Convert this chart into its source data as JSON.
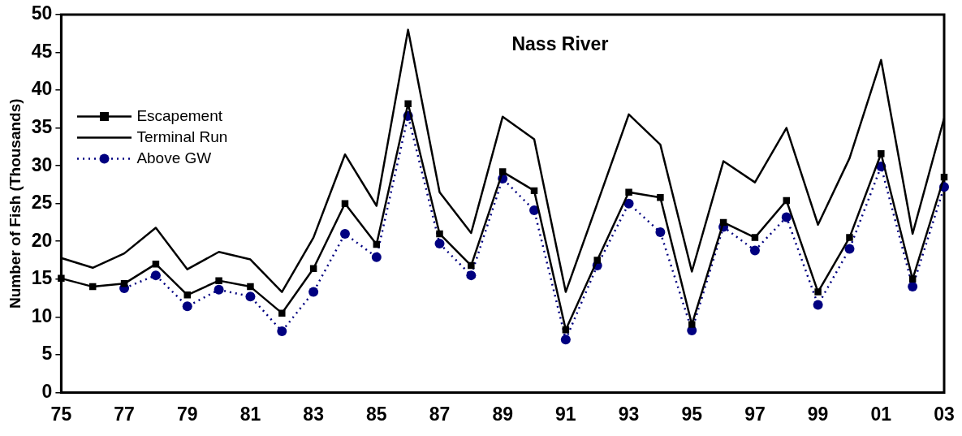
{
  "chart_data": {
    "type": "line",
    "title": "Nass River",
    "ylabel": "Number of Fish (Thousands)",
    "categories": [
      "75",
      null,
      "77",
      null,
      "79",
      null,
      "81",
      null,
      "83",
      null,
      "85",
      null,
      "87",
      null,
      "89",
      null,
      "91",
      null,
      "93",
      null,
      "95",
      null,
      "97",
      null,
      "99",
      null,
      "01",
      null,
      "03"
    ],
    "ylim": [
      0,
      50
    ],
    "yticks": [
      0,
      5,
      10,
      15,
      20,
      25,
      30,
      35,
      40,
      45,
      50
    ],
    "grid": false,
    "legend": "top left",
    "series": [
      {
        "name": "Escapement",
        "color": "#000000",
        "marker": "square",
        "line_style": "solid",
        "values": [
          15.1,
          14.0,
          14.4,
          17.0,
          12.9,
          14.8,
          14.0,
          10.5,
          16.4,
          25.0,
          19.6,
          38.2,
          21.0,
          16.8,
          29.2,
          26.7,
          8.3,
          17.5,
          26.5,
          25.8,
          9.0,
          22.5,
          20.5,
          25.4,
          13.3,
          20.5,
          31.6,
          15.0,
          28.5
        ]
      },
      {
        "name": "Terminal Run",
        "color": "#000000",
        "marker": "none",
        "line_style": "solid",
        "values": [
          17.8,
          16.5,
          18.4,
          21.8,
          16.3,
          18.6,
          17.6,
          13.3,
          20.5,
          31.5,
          24.7,
          48.0,
          26.5,
          21.1,
          36.5,
          33.5,
          13.3,
          25.0,
          36.8,
          32.8,
          16.0,
          30.6,
          27.8,
          35.0,
          22.2,
          31.0,
          44.0,
          21.0,
          36.3
        ]
      },
      {
        "name": "Above GW",
        "color": "#000080",
        "marker": "circle",
        "line_style": "dotted",
        "values": [
          null,
          null,
          13.8,
          15.5,
          11.4,
          13.6,
          12.7,
          8.1,
          13.3,
          21.0,
          17.9,
          36.6,
          19.7,
          15.5,
          28.3,
          24.1,
          7.0,
          16.8,
          25.0,
          21.2,
          8.2,
          21.9,
          18.8,
          23.2,
          11.6,
          19.0,
          29.9,
          14.0,
          27.2
        ]
      }
    ]
  }
}
